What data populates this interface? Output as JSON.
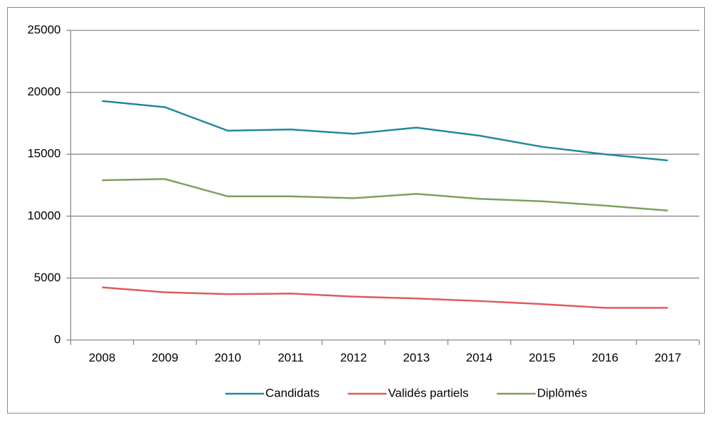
{
  "chart_data": {
    "type": "line",
    "categories": [
      "2008",
      "2009",
      "2010",
      "2011",
      "2012",
      "2013",
      "2014",
      "2015",
      "2016",
      "2017"
    ],
    "series": [
      {
        "name": "Candidats",
        "color": "#1f8a9a",
        "values": [
          19300,
          18800,
          16900,
          17000,
          16650,
          17150,
          16500,
          15600,
          15000,
          14500
        ]
      },
      {
        "name": "Validés partiels",
        "color": "#e05a5a",
        "values": [
          4250,
          3850,
          3700,
          3750,
          3500,
          3350,
          3150,
          2900,
          2600,
          2600
        ]
      },
      {
        "name": "Diplômés",
        "color": "#7f9e5e",
        "values": [
          12900,
          13000,
          11600,
          11600,
          11450,
          11800,
          11400,
          11200,
          10850,
          10450
        ]
      }
    ],
    "ylim": [
      0,
      25000
    ],
    "yticks": [
      0,
      5000,
      10000,
      15000,
      20000,
      25000
    ],
    "grid": true,
    "legend": "bottom"
  }
}
